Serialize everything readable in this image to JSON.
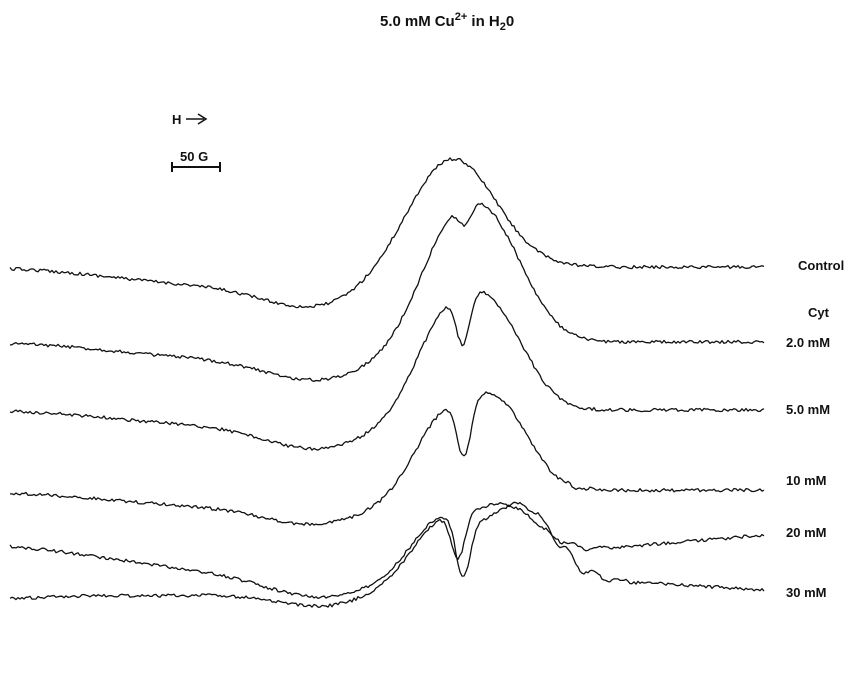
{
  "chart_data": {
    "type": "line",
    "title": {
      "pre": "5.0",
      "unit": "mM",
      "species": "Cu",
      "charge": "2+",
      "mid": " in H",
      "sub": "2",
      "post": "0"
    },
    "field_arrow_label": "H",
    "scale_bar_label": "50 G",
    "group_label": "Cyt",
    "grid": false,
    "legend": "labels-right-of-traces",
    "series": [
      {
        "name": "Control",
        "baseline": 0,
        "dip": 0.08,
        "dip_depth": 0.3,
        "peaks": [
          [
            0.4,
            1.0,
            0.085
          ]
        ],
        "notch": null,
        "hyperfine": 0
      },
      {
        "name": "2.0 mM",
        "baseline": 0,
        "dip": 0.072,
        "dip_depth": 0.32,
        "peaks": [
          [
            0.365,
            0.9,
            0.05
          ],
          [
            0.45,
            0.95,
            0.055
          ]
        ],
        "notch": [
          0.4,
          0.15
        ],
        "hyperfine": 0
      },
      {
        "name": "5.0 mM",
        "baseline": 0,
        "dip": 0.065,
        "dip_depth": 0.35,
        "peaks": [
          [
            0.34,
            0.8,
            0.04
          ],
          [
            0.44,
            1.0,
            0.05
          ]
        ],
        "notch": [
          0.37,
          0.35
        ],
        "hyperfine": 0
      },
      {
        "name": "10 mM",
        "baseline": 0,
        "dip": 0.06,
        "dip_depth": 0.3,
        "peaks": [
          [
            0.33,
            0.7,
            0.035
          ],
          [
            0.43,
            0.95,
            0.045
          ]
        ],
        "notch": [
          0.36,
          0.4
        ],
        "hyperfine": 0.1
      },
      {
        "name": "20 mM",
        "baseline": 0,
        "dip": 0.055,
        "dip_depth": 0.32,
        "peaks": [
          [
            0.3,
            0.6,
            0.035
          ],
          [
            0.4,
            0.8,
            0.05
          ]
        ],
        "notch": [
          0.33,
          0.4
        ],
        "hyperfine": 0.4
      },
      {
        "name": "30 mM",
        "baseline": 0,
        "dip": 0.05,
        "dip_depth": 0.35,
        "peaks": [
          [
            0.28,
            0.5,
            0.035
          ],
          [
            0.36,
            0.6,
            0.05
          ]
        ],
        "notch": [
          0.31,
          0.35
        ],
        "hyperfine": 0.2
      }
    ]
  }
}
